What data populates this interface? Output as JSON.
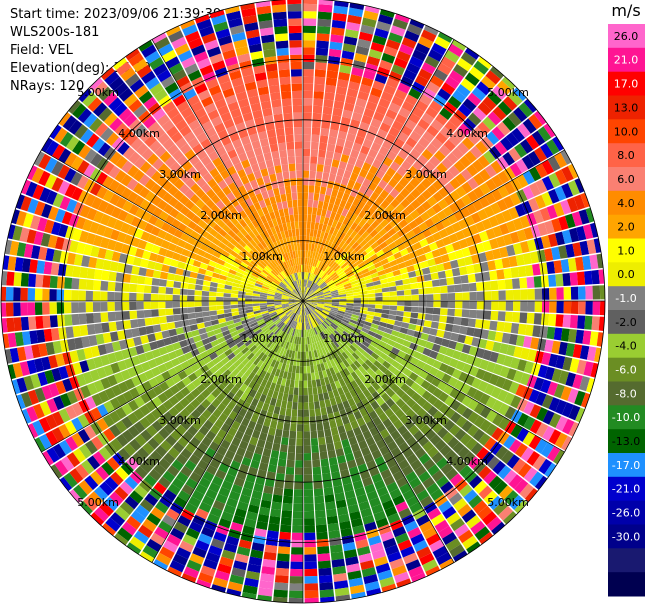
{
  "info": {
    "start_time": "Start time: 2023/09/06 21:39:39",
    "instrument": "WLS200s-181",
    "field": "Field: VEL",
    "elevation": "Elevation(deg): 35.30",
    "nrays": "NRays: 120"
  },
  "chart_data": {
    "type": "heatmap",
    "projection": "polar-ppi",
    "title": "",
    "field": "VEL",
    "units": "m/s",
    "nrays": 120,
    "max_range_km": 5.0,
    "range_rings_km": [
      1.0,
      2.0,
      3.0,
      4.0,
      5.0
    ],
    "ring_labels": [
      "1.00km",
      "2.00km",
      "3.00km",
      "4.00km",
      "5.00km"
    ],
    "spokes_deg": [
      0,
      30,
      60,
      90,
      120,
      150,
      180,
      210,
      240,
      270,
      300,
      330
    ],
    "colorbar": {
      "label": "m/s",
      "ticks": [
        "26.0",
        "21.0",
        "17.0",
        "13.0",
        "10.0",
        "8.0",
        "6.0",
        "4.0",
        "2.0",
        "1.0",
        "0.0",
        "-1.0",
        "-2.0",
        "-4.0",
        "-6.0",
        "-8.0",
        "-10.0",
        "-13.0",
        "-17.0",
        "-21.0",
        "-26.0",
        "-30.0"
      ],
      "colors": [
        "#ff66cc",
        "#ff1493",
        "#ff0000",
        "#ee2200",
        "#ff4500",
        "#ff6347",
        "#fa8072",
        "#ff8c00",
        "#ffa500",
        "#ffff00",
        "#eeee00",
        "#808080",
        "#606060",
        "#9acd32",
        "#6b8e23",
        "#556b2f",
        "#228b22",
        "#006400",
        "#1e90ff",
        "#0000cd",
        "#0000aa",
        "#00008b",
        "#191970",
        "#000050"
      ]
    },
    "pattern": {
      "note": "approaching/receding velocity dipole",
      "upper_half_range_mps": [
        0.0,
        10.0
      ],
      "lower_half_range_mps": [
        -8.0,
        -1.0
      ],
      "noise_beyond_km": 4.0
    }
  }
}
